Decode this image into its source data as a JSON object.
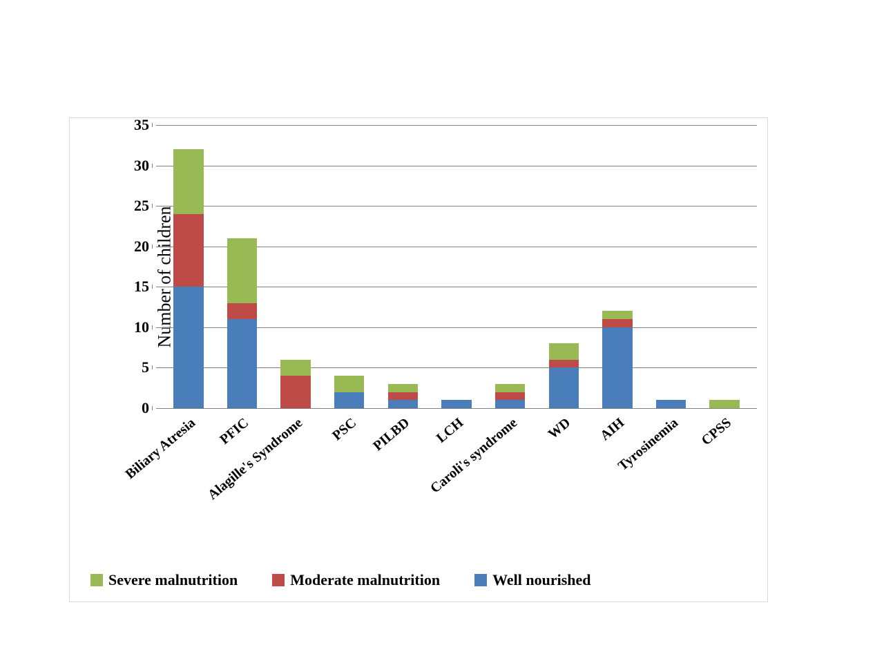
{
  "chart": {
    "type": "stacked-bar",
    "ylabel": "Number of children",
    "ylabel_fontsize": 26,
    "ylim": [
      0,
      35
    ],
    "ytick_step": 5,
    "tick_fontsize": 22,
    "xtick_fontsize": 20,
    "xtick_rotation_deg": -40,
    "bar_width": 0.56,
    "background_color": "#ffffff",
    "border_color": "#d9d9d9",
    "grid_color": "#808080",
    "axis_color": "#808080",
    "categories": [
      "Biliary Atresia",
      "PFIC",
      "Alagille's Syndrome",
      "PSC",
      "PILBD",
      "LCH",
      "Caroli's syndrome",
      "WD",
      "AIH",
      "Tyrosinemia",
      "CPSS"
    ],
    "series": [
      {
        "key": "well",
        "label": "Well nourished",
        "color": "#4a7ebb"
      },
      {
        "key": "moderate",
        "label": "Moderate malnutrition",
        "color": "#be4b48"
      },
      {
        "key": "severe",
        "label": "Severe malnutrition",
        "color": "#98b954"
      }
    ],
    "legend_order": [
      "severe",
      "moderate",
      "well"
    ],
    "legend_fontsize": 22,
    "values": {
      "well": [
        15,
        11,
        0,
        2,
        1,
        1,
        1,
        5,
        10,
        1,
        0
      ],
      "moderate": [
        9,
        2,
        4,
        0,
        1,
        0,
        1,
        1,
        1,
        0,
        0
      ],
      "severe": [
        8,
        8,
        2,
        2,
        1,
        0,
        1,
        2,
        1,
        0,
        1
      ]
    }
  }
}
